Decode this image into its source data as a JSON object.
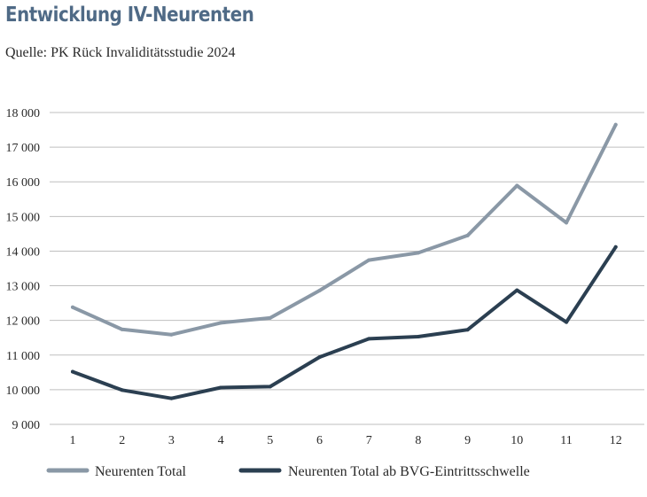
{
  "title": "Entwicklung IV-Neurenten",
  "subtitle": "Quelle: PK Rück Invaliditätsstudie 2024",
  "colors": {
    "total": "#8a98a6",
    "bvg": "#2b3f51",
    "grid": "#bfbfbf"
  },
  "chart_data": {
    "type": "line",
    "title": "Entwicklung IV-Neurenten",
    "subtitle": "Quelle: PK Rück Invaliditätsstudie 2024",
    "xlabel": "",
    "ylabel": "",
    "categories": [
      "1",
      "2",
      "3",
      "4",
      "5",
      "6",
      "7",
      "8",
      "9",
      "10",
      "11",
      "12"
    ],
    "ylim": [
      9000,
      18000
    ],
    "yticks": [
      9000,
      10000,
      11000,
      12000,
      13000,
      14000,
      15000,
      16000,
      17000,
      18000
    ],
    "ytick_labels": [
      "9 000",
      "10 000",
      "11 000",
      "12 000",
      "13 000",
      "14 000",
      "15 000",
      "16 000",
      "17 000",
      "18 000"
    ],
    "grid": true,
    "legend_position": "bottom",
    "series": [
      {
        "name": "Neurenten Total",
        "color": "#8a98a6",
        "values": [
          12380,
          11740,
          11590,
          11930,
          12070,
          12860,
          13740,
          13950,
          14450,
          15890,
          14820,
          17650
        ]
      },
      {
        "name": "Neurenten Total ab BVG-Eintrittsschwelle",
        "color": "#2b3f51",
        "values": [
          10520,
          9990,
          9750,
          10060,
          10090,
          10940,
          11470,
          11530,
          11730,
          12870,
          11950,
          14120
        ]
      }
    ]
  }
}
